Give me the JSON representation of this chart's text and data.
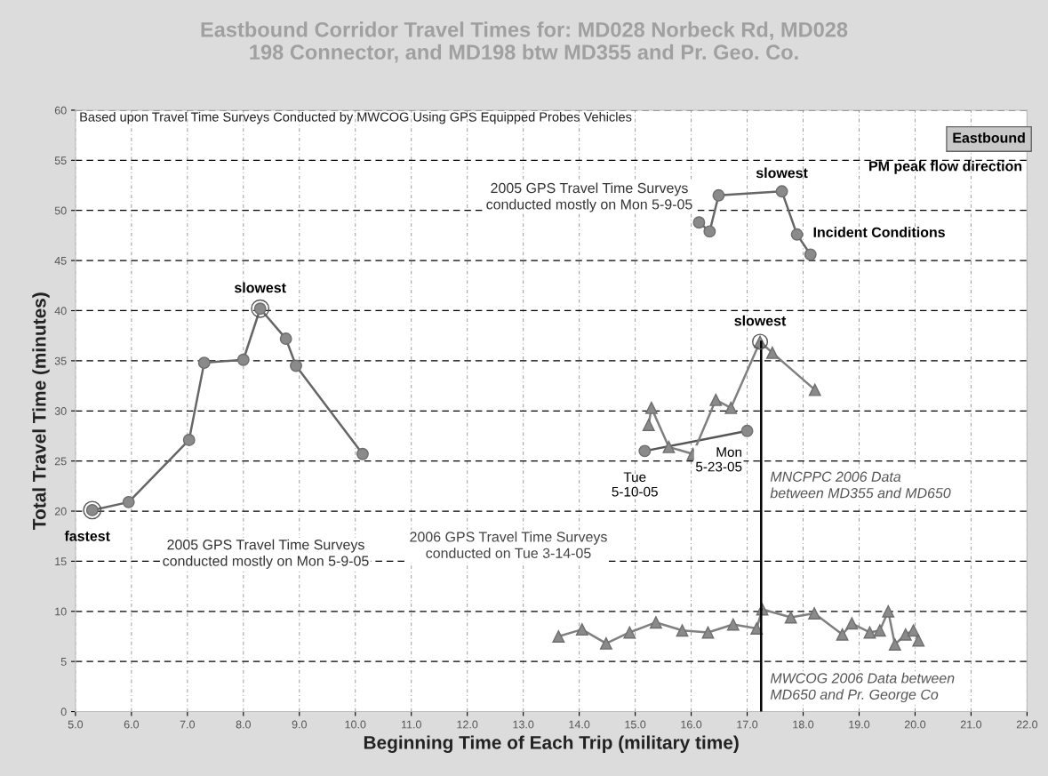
{
  "chart_data": {
    "type": "line",
    "title": "Eastbound Corridor Travel Times for: MD028 Norbeck Rd, MD028\n198 Connector, and MD198 btw MD355 and Pr. Geo. Co.",
    "subtitle": "Based upon Travel Time Surveys Conducted by MWCOG Using GPS Equipped Probes Vehicles",
    "xlabel": "Beginning Time of Each Trip (military time)",
    "ylabel": "Total Travel Time (minutes)",
    "xlim": [
      5,
      22
    ],
    "ylim": [
      0,
      60
    ],
    "xticks": [
      {
        "value": 5,
        "label": "5.0"
      },
      {
        "value": 6,
        "label": "6.0"
      },
      {
        "value": 7,
        "label": "7.0"
      },
      {
        "value": 8,
        "label": "8.0"
      },
      {
        "value": 9,
        "label": "9.0"
      },
      {
        "value": 10,
        "label": "10.0"
      },
      {
        "value": 11,
        "label": "11.0"
      },
      {
        "value": 12,
        "label": "12.0"
      },
      {
        "value": 13,
        "label": "13.0"
      },
      {
        "value": 14,
        "label": "14.0"
      },
      {
        "value": 15,
        "label": "15.0"
      },
      {
        "value": 16,
        "label": "16.0"
      },
      {
        "value": 17,
        "label": "17.0"
      },
      {
        "value": 18,
        "label": "18.0"
      },
      {
        "value": 19,
        "label": "19.0"
      },
      {
        "value": 20,
        "label": "20.0"
      },
      {
        "value": 21,
        "label": "21.0"
      },
      {
        "value": 22,
        "label": "22.0"
      }
    ],
    "yticks": [
      0,
      5,
      10,
      15,
      20,
      25,
      30,
      35,
      40,
      45,
      50,
      55,
      60
    ],
    "grid": true,
    "line_style": "solid",
    "series": [
      {
        "color": "#666666",
        "marker": "circle",
        "x": [
          5.3,
          5.95,
          7.03,
          7.3,
          8.0,
          8.3,
          8.76,
          8.94,
          10.13
        ],
        "values": [
          20.1,
          20.9,
          27.1,
          34.8,
          35.1,
          40.2,
          37.2,
          34.5,
          25.7
        ]
      },
      {
        "color": "#666666",
        "marker": "circle",
        "x": [
          16.14,
          16.33,
          16.49,
          17.62,
          17.89,
          18.13
        ],
        "values": [
          48.8,
          47.9,
          51.5,
          51.9,
          47.6,
          45.6
        ]
      },
      {
        "color": "#555555",
        "marker": "circle",
        "x": [
          15.17,
          17.0
        ],
        "values": [
          26.0,
          28.0
        ]
      },
      {
        "color": "#808080",
        "marker": "triangle",
        "x": [
          15.24,
          15.29,
          15.6,
          16.03,
          16.44,
          16.71,
          17.23,
          17.45,
          18.21
        ],
        "values": [
          28.6,
          30.3,
          26.4,
          25.7,
          31.1,
          30.3,
          36.9,
          35.8,
          32.1
        ]
      },
      {
        "color": "#808080",
        "marker": "triangle",
        "x": [
          13.63,
          14.05,
          14.48,
          14.9,
          15.37,
          15.84,
          16.3,
          16.75,
          17.17,
          17.27,
          17.78,
          18.2,
          18.7,
          18.87,
          19.19,
          19.37,
          19.52,
          19.64,
          19.83,
          19.97,
          20.06
        ],
        "values": [
          7.5,
          8.2,
          6.8,
          7.9,
          8.9,
          8.1,
          7.9,
          8.7,
          8.3,
          10.2,
          9.4,
          9.8,
          7.7,
          8.8,
          7.9,
          8.1,
          10.0,
          6.7,
          7.7,
          8.1,
          7.1
        ]
      },
      {
        "color": "#000000",
        "x": [
          17.25,
          17.25
        ],
        "values": [
          36.9,
          10.2
        ]
      },
      {
        "color": "#000000",
        "x": [
          17.25,
          17.25
        ],
        "values": [
          10.2,
          0
        ]
      }
    ],
    "annotations": [
      {
        "text": "slowest",
        "x": 8.3,
        "y": 40.2
      },
      {
        "text": "fastest",
        "x": 5.3,
        "y": 20.1
      },
      "2005 GPS Travel Time Surveys\nconducted mostly on Mon 5-9-05",
      "2005 GPS Travel Time Surveys\nconducted mostly on Mon 5-9-05",
      {
        "text": "slowest",
        "x": 17.62,
        "y": 51.9
      },
      "Incident Conditions",
      "Eastbound",
      "PM peak flow direction",
      {
        "text": "slowest",
        "x": 17.23,
        "y": 36.9
      },
      {
        "text": "Tue\n5-10-05",
        "x": 15.17,
        "y": 26.0
      },
      {
        "text": "Mon\n5-23-05",
        "x": 17.0,
        "y": 28.0
      },
      "MNCPPC 2006 Data\nbetween MD355 and MD650",
      "2006 GPS Travel Time Surveys\nconducted on Tue 3-14-05",
      "MWCOG 2006 Data between\nMD650 and Pr. George Co"
    ]
  }
}
